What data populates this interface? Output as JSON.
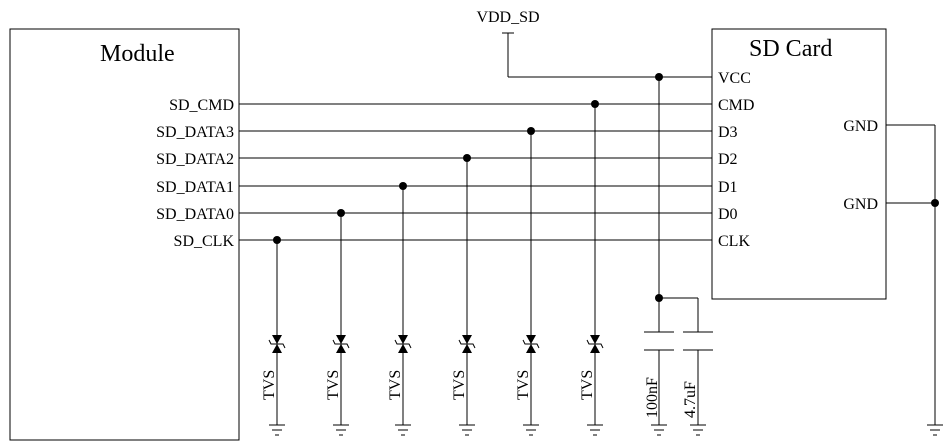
{
  "module": {
    "title": "Module",
    "pins": [
      "SD_CMD",
      "SD_DATA3",
      "SD_DATA2",
      "SD_DATA1",
      "SD_DATA0",
      "SD_CLK"
    ]
  },
  "sdcard": {
    "title": "SD Card",
    "pins": [
      "VCC",
      "CMD",
      "D3",
      "D2",
      "D1",
      "D0",
      "CLK"
    ],
    "gnd1": "GND",
    "gnd2": "GND"
  },
  "power": {
    "label": "VDD_SD"
  },
  "tvs": [
    "TVS",
    "TVS",
    "TVS",
    "TVS",
    "TVS",
    "TVS"
  ],
  "caps": [
    "100nF",
    "4.7uF"
  ]
}
